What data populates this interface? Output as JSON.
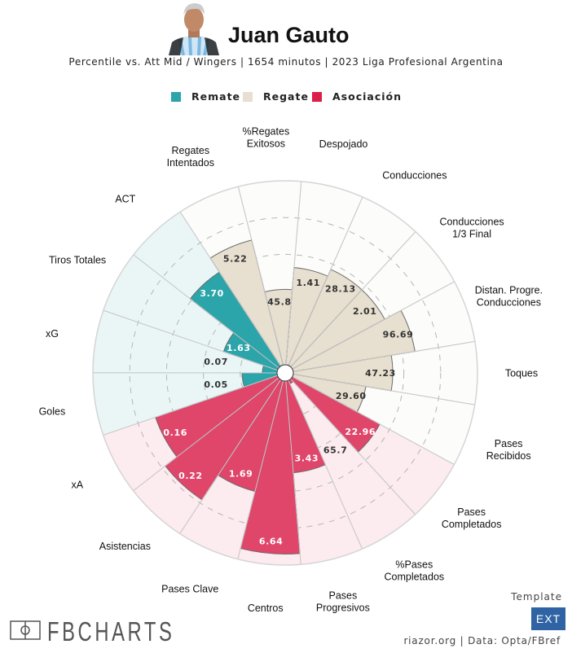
{
  "header": {
    "player_name": "Juan Gauto",
    "subtitle": "Percentile vs. Att Mid / Wingers | 1654 minutos | 2023 Liga Profesional Argentina"
  },
  "legend": [
    {
      "label": "Remate",
      "color": "#2ba5aa"
    },
    {
      "label": "Regate",
      "color": "#e7dfcf"
    },
    {
      "label": "Asociación",
      "color": "#e0456a"
    }
  ],
  "footer": {
    "logo": "FBCHARTS",
    "template_label": "Template",
    "template_value": "EXT",
    "credit": "riazor.org | Data: Opta/FBref"
  },
  "chart_data": {
    "type": "pizza",
    "title": "Juan Gauto",
    "value_range": [
      0,
      100
    ],
    "grid": true,
    "legend_placement": "top",
    "group_colors": {
      "Remate": {
        "bar": "#2ba5aa",
        "bg": "#eaf6f6",
        "text": "#ffffff"
      },
      "Regate": {
        "bar": "#e7dfcf",
        "bg": "#fcfcfa",
        "text": "#333333"
      },
      "Asociación": {
        "bar": "#e0456a",
        "bg": "#fcebef",
        "text": "#ffffff"
      }
    },
    "metrics": [
      {
        "label": [
          "Despojado"
        ],
        "group": "Regate",
        "value": "1.41",
        "percentile": 53
      },
      {
        "label": [
          "Conducciones"
        ],
        "group": "Regate",
        "value": "28.13",
        "percentile": 57
      },
      {
        "label": [
          "Conducciones",
          "1/3 Final"
        ],
        "group": "Regate",
        "value": "2.01",
        "percentile": 57
      },
      {
        "label": [
          "Distan. Progre.",
          "Conducciones"
        ],
        "group": "Regate",
        "value": "96.69",
        "percentile": 67
      },
      {
        "label": [
          "Toques"
        ],
        "group": "Regate",
        "value": "47.23",
        "percentile": 54
      },
      {
        "label": [
          "Pases",
          "Recibidos"
        ],
        "group": "Regate",
        "value": "29.60",
        "percentile": 40
      },
      {
        "label": [
          "Pases",
          "Completados"
        ],
        "group": "Asociación",
        "value": "22.96",
        "percentile": 54
      },
      {
        "label": [
          "%Pases",
          "Completados"
        ],
        "group": "Asociación",
        "value": "65.7",
        "percentile": 2
      },
      {
        "label": [
          "Pases",
          "Progresivos"
        ],
        "group": "Asociación",
        "value": "3.43",
        "percentile": 50
      },
      {
        "label": [
          "Centros"
        ],
        "group": "Asociación",
        "value": "6.64",
        "percentile": 94
      },
      {
        "label": [
          "Pases Clave"
        ],
        "group": "Asociación",
        "value": "1.69",
        "percentile": 62
      },
      {
        "label": [
          "Asistencias"
        ],
        "group": "Asociación",
        "value": "0.22",
        "percentile": 78
      },
      {
        "label": [
          "xA"
        ],
        "group": "Asociación",
        "value": "0.16",
        "percentile": 70
      },
      {
        "label": [
          "Goles"
        ],
        "group": "Remate",
        "value": "0.05",
        "percentile": 19
      },
      {
        "label": [
          "xG"
        ],
        "group": "Remate",
        "value": "0.07",
        "percentile": 8
      },
      {
        "label": [
          "Tiros Totales"
        ],
        "group": "Remate",
        "value": "1.63",
        "percentile": 31
      },
      {
        "label": [
          "ACT"
        ],
        "group": "Remate",
        "value": "3.70",
        "percentile": 61
      },
      {
        "label": [
          "Regates",
          "Intentados"
        ],
        "group": "Regate",
        "value": "5.22",
        "percentile": 70
      },
      {
        "label": [
          "%Regates",
          "Exitosos"
        ],
        "group": "Regate",
        "value": "45.8",
        "percentile": 41
      }
    ]
  }
}
